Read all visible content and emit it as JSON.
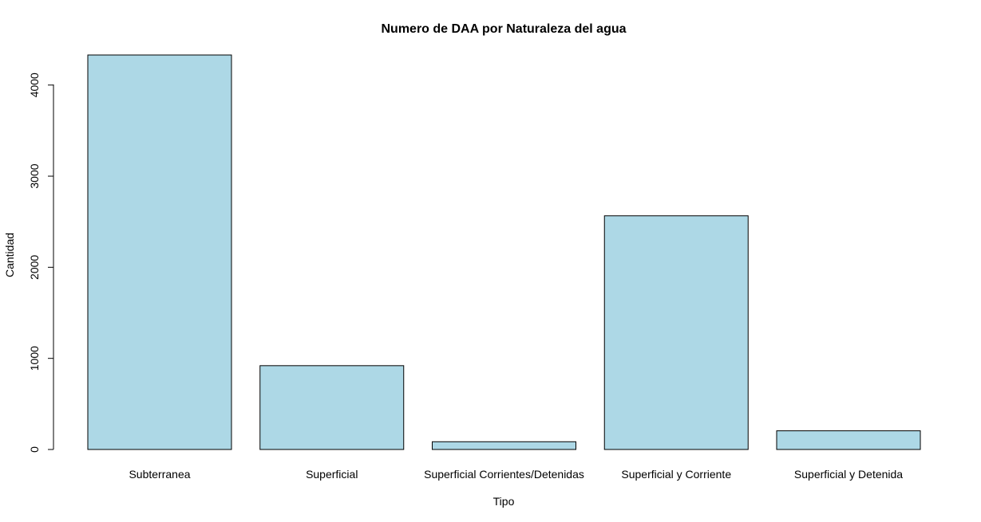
{
  "chart_data": {
    "type": "bar",
    "title": "Numero de DAA por Naturaleza del agua",
    "xlabel": "Tipo",
    "ylabel": "Cantidad",
    "categories": [
      "Subterranea",
      "Superficial",
      "Superficial Corrientes/Detenidas",
      "Superficial y Corriente",
      "Superficial y Detenida"
    ],
    "values": [
      4330,
      920,
      85,
      2565,
      205
    ],
    "ylim": [
      0,
      4330
    ],
    "yticks": [
      "0",
      "1000",
      "2000",
      "3000",
      "4000"
    ],
    "grid": false,
    "legend": "none",
    "bar_color": "#ADD8E6",
    "border_color": "#000000"
  }
}
